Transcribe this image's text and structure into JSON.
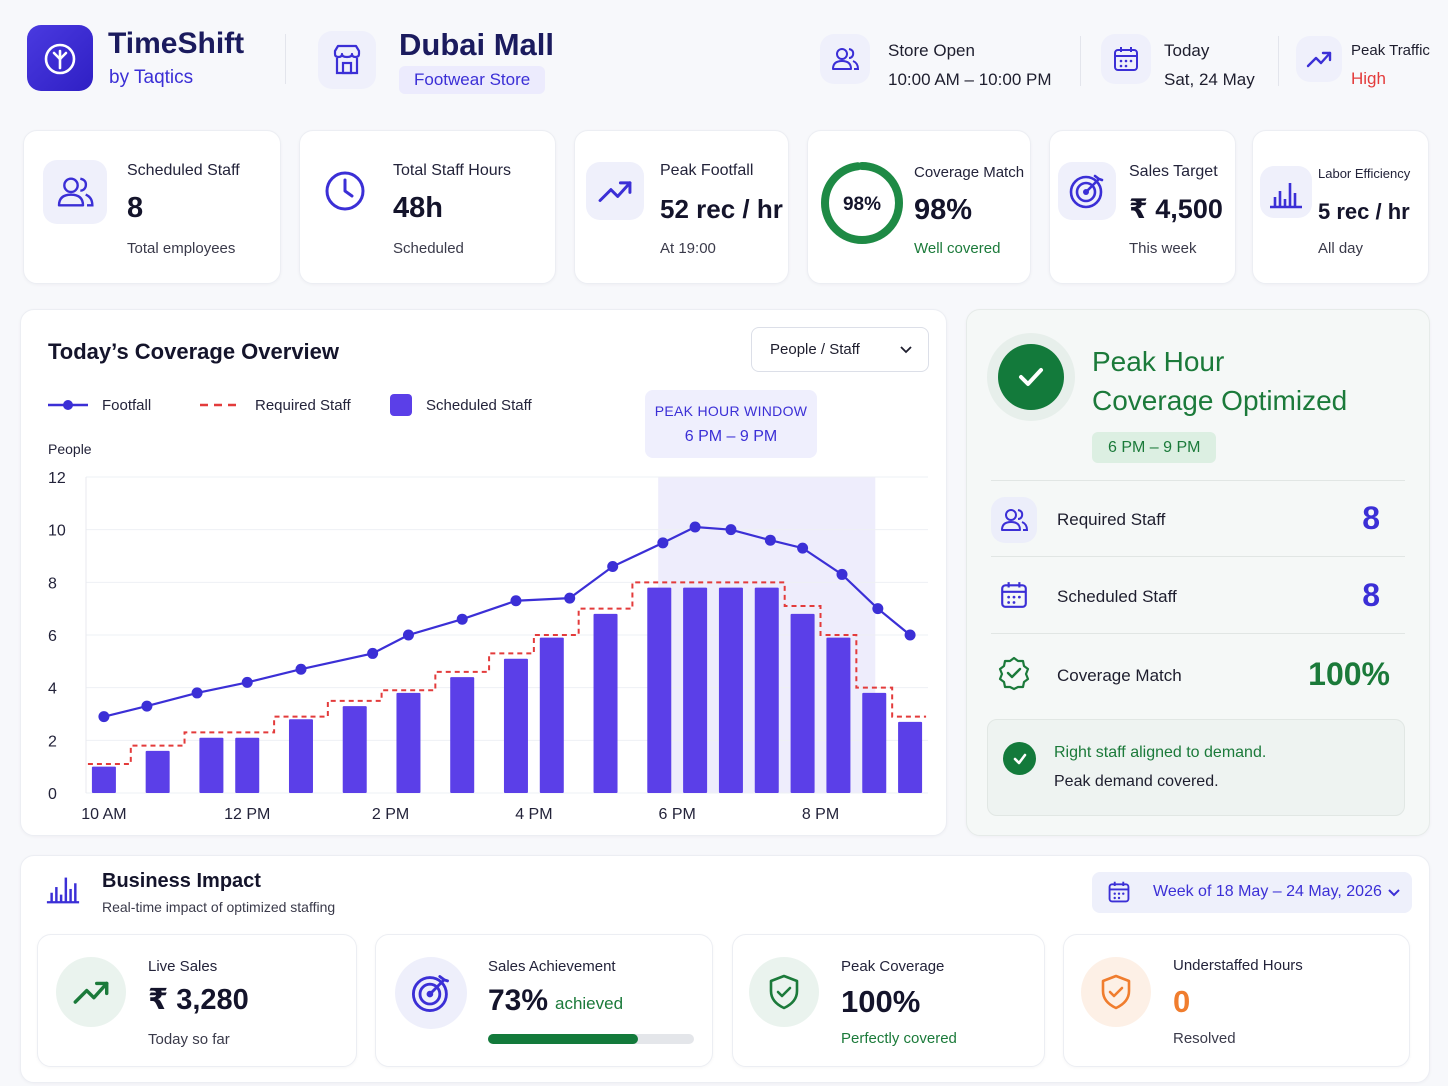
{
  "colors": {
    "brand": "#3b2fd6",
    "bar": "#5b3fe8",
    "footfall_line": "#3b2fd6",
    "required_line": "#e33b3b",
    "good": "#1b7a3a",
    "alert": "#e33b3b",
    "warn": "#f07d2e"
  },
  "header": {
    "brand_name": "TimeShift",
    "brand_sub": "by Taqtics",
    "store_name": "Dubai Mall",
    "store_tag": "Footwear Store",
    "store_open_label": "Store Open",
    "store_open_value": "10:00 AM – 10:00 PM",
    "today_label": "Today",
    "today_value": "Sat, 24 May",
    "peak_traffic_label": "Peak Traffic",
    "peak_traffic_value": "High"
  },
  "kpis": {
    "scheduled_staff": {
      "label": "Scheduled Staff",
      "value": "8",
      "sub": "Total employees",
      "icon": "users-icon"
    },
    "total_hours": {
      "label": "Total Staff Hours",
      "value": "48h",
      "sub": "Scheduled",
      "icon": "clock-icon"
    },
    "peak_footfall": {
      "label": "Peak Footfall",
      "value": "52 rec / hr",
      "sub": "At 19:00",
      "icon": "trend-up-icon"
    },
    "coverage_match": {
      "label": "Coverage Match",
      "value": "98%",
      "ring_text": "98%",
      "ring_fraction": 0.98,
      "sub": "Well covered"
    },
    "sales_target": {
      "label": "Sales Target",
      "value": "₹ 4,500",
      "sub": "This week",
      "icon": "target-icon"
    },
    "labor_efficiency": {
      "label": "Labor Efficiency",
      "value": "5 rec / hr",
      "sub": "All day",
      "icon": "bar-chart-icon"
    }
  },
  "coverage": {
    "title": "Today’s Coverage Overview",
    "select_value": "People / Staff",
    "legend": {
      "footfall": "Footfall",
      "required": "Required Staff",
      "scheduled": "Scheduled Staff"
    },
    "peak_window_title": "PEAK HOUR WINDOW",
    "peak_window_range": "6 PM – 9 PM"
  },
  "chart_data": {
    "type": "bar",
    "ylabel": "People",
    "ylim": [
      0,
      12
    ],
    "yticks": [
      0,
      2,
      4,
      6,
      8,
      10,
      12
    ],
    "x_tick_labels": [
      "10 AM",
      "12 PM",
      "2 PM",
      "4 PM",
      "6 PM",
      "8 PM",
      "10 PM"
    ],
    "x_tick_hours": [
      10,
      12,
      14,
      16,
      18,
      20,
      22
    ],
    "highlight_range_hours": [
      18,
      20.75
    ],
    "grid": true,
    "series": [
      {
        "name": "Scheduled Staff",
        "kind": "bar",
        "x": [
          10,
          10.75,
          11.5,
          12,
          12.75,
          13.5,
          14.25,
          15,
          15.75,
          16.25,
          17,
          17.75,
          18.25,
          18.75,
          19.25,
          19.75,
          20.25,
          20.75,
          21.25
        ],
        "values": [
          1,
          1.6,
          2.1,
          2.1,
          2.8,
          3.3,
          3.8,
          4.4,
          5.1,
          5.9,
          6.8,
          7.8,
          7.8,
          7.8,
          7.8,
          6.8,
          5.9,
          3.8,
          2.7
        ]
      },
      {
        "name": "Required Staff",
        "kind": "step",
        "x": [
          10,
          10.75,
          11.5,
          12,
          12.75,
          13.5,
          14.25,
          15,
          15.75,
          16.25,
          17,
          17.75,
          18.25,
          18.75,
          19.25,
          19.75,
          20.25,
          20.75,
          21.25
        ],
        "values": [
          1.1,
          1.8,
          2.3,
          2.3,
          2.9,
          3.5,
          3.9,
          4.6,
          5.3,
          6.0,
          7.0,
          8.0,
          8.0,
          8.0,
          8.0,
          7.1,
          6.0,
          4.0,
          2.9
        ]
      },
      {
        "name": "Footfall",
        "kind": "line",
        "x": [
          10,
          10.6,
          11.3,
          12,
          12.75,
          13.75,
          14.25,
          15,
          15.75,
          16.5,
          17.1,
          17.8,
          18.25,
          18.75,
          19.3,
          19.75,
          20.3,
          20.8,
          21.25
        ],
        "values": [
          2.9,
          3.3,
          3.8,
          4.2,
          4.7,
          5.3,
          6.0,
          6.6,
          7.3,
          7.4,
          8.6,
          9.5,
          10.1,
          10.0,
          9.6,
          9.3,
          8.3,
          7.0,
          6.0
        ]
      }
    ]
  },
  "peak_panel": {
    "title_line1": "Peak Hour",
    "title_line2": "Coverage Optimized",
    "range": "6 PM – 9 PM",
    "required_label": "Required Staff",
    "required_value": "8",
    "scheduled_label": "Scheduled Staff",
    "scheduled_value": "8",
    "match_label": "Coverage Match",
    "match_value": "100%",
    "aligned_line1": "Right staff aligned to demand.",
    "aligned_line2": "Peak demand covered."
  },
  "business": {
    "title": "Business Impact",
    "subtitle": "Real-time impact of optimized staffing",
    "week": "Week of 18 May – 24 May, 2026",
    "live_sales": {
      "label": "Live Sales",
      "value": "₹ 3,280",
      "sub": "Today so far"
    },
    "sales_achievement": {
      "label": "Sales Achievement",
      "value": "73%",
      "suffix": "achieved",
      "progress": 0.73
    },
    "peak_coverage": {
      "label": "Peak Coverage",
      "value": "100%",
      "sub": "Perfectly covered"
    },
    "understaffed": {
      "label": "Understaffed Hours",
      "value": "0",
      "sub": "Resolved"
    }
  }
}
